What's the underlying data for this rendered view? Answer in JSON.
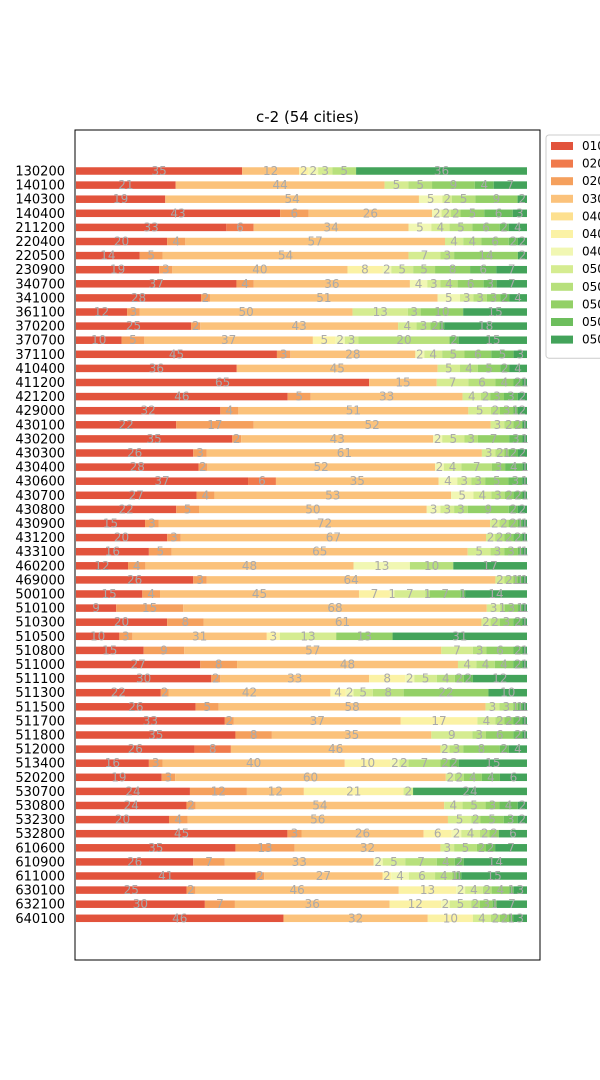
{
  "chart_data": {
    "type": "bar",
    "orientation": "horizontal",
    "stacked": true,
    "title": "c-2 (54 cities)",
    "xlabel": "",
    "ylabel": "",
    "legend_position": "right",
    "legend_labels": [
      "010",
      "020",
      "020",
      "030",
      "040",
      "040",
      "040",
      "050",
      "050",
      "050",
      "050",
      "050"
    ],
    "colors": [
      "#e2533c",
      "#f07a4c",
      "#f5a05d",
      "#fbc27b",
      "#fde08f",
      "#fbf2a5",
      "#f1f7b3",
      "#d5ec91",
      "#b7e07c",
      "#93d067",
      "#6dbe5d",
      "#43a35a"
    ],
    "categories": [
      "130200",
      "140100",
      "140300",
      "140400",
      "211200",
      "220400",
      "220500",
      "230900",
      "340700",
      "341000",
      "361100",
      "370200",
      "370700",
      "371100",
      "410400",
      "411200",
      "421200",
      "429000",
      "430100",
      "430200",
      "430300",
      "430400",
      "430600",
      "430700",
      "430800",
      "430900",
      "431200",
      "433100",
      "460200",
      "469000",
      "500100",
      "510100",
      "510300",
      "510500",
      "510800",
      "511000",
      "511100",
      "511300",
      "511500",
      "511700",
      "511800",
      "512000",
      "513400",
      "520200",
      "530700",
      "530800",
      "532300",
      "532800",
      "610600",
      "610900",
      "611000",
      "630100",
      "632100",
      "640100"
    ],
    "rows": [
      [
        35,
        0,
        0,
        12,
        0,
        2,
        2,
        3,
        5,
        0,
        0,
        36
      ],
      [
        21,
        0,
        0,
        44,
        0,
        0,
        0,
        5,
        5,
        9,
        4,
        7
      ],
      [
        19,
        0,
        0,
        54,
        0,
        0,
        5,
        2,
        5,
        9,
        0,
        2
      ],
      [
        43,
        0,
        6,
        26,
        0,
        0,
        2,
        2,
        2,
        5,
        6,
        3
      ],
      [
        33,
        6,
        0,
        34,
        0,
        0,
        5,
        4,
        5,
        6,
        2,
        4
      ],
      [
        20,
        0,
        4,
        57,
        0,
        0,
        0,
        4,
        4,
        6,
        2,
        2
      ],
      [
        14,
        0,
        5,
        54,
        0,
        0,
        0,
        7,
        3,
        14,
        0,
        2
      ],
      [
        19,
        0,
        3,
        40,
        0,
        8,
        2,
        5,
        5,
        8,
        6,
        7
      ],
      [
        37,
        0,
        4,
        36,
        0,
        0,
        4,
        3,
        4,
        6,
        3,
        7
      ],
      [
        28,
        0,
        2,
        51,
        0,
        0,
        5,
        3,
        3,
        3,
        2,
        4
      ],
      [
        12,
        0,
        3,
        50,
        0,
        0,
        0,
        13,
        3,
        10,
        0,
        15
      ],
      [
        25,
        0,
        2,
        43,
        0,
        0,
        0,
        4,
        3,
        2,
        1,
        18
      ],
      [
        10,
        0,
        5,
        37,
        0,
        5,
        2,
        3,
        20,
        0,
        2,
        15
      ],
      [
        45,
        0,
        3,
        28,
        0,
        0,
        2,
        4,
        5,
        6,
        5,
        3
      ],
      [
        36,
        0,
        0,
        45,
        0,
        0,
        0,
        5,
        4,
        5,
        2,
        4
      ],
      [
        65,
        0,
        0,
        15,
        0,
        0,
        0,
        7,
        6,
        4,
        2,
        1
      ],
      [
        46,
        0,
        5,
        33,
        0,
        0,
        0,
        4,
        2,
        3,
        3,
        2
      ],
      [
        32,
        0,
        4,
        51,
        0,
        0,
        0,
        5,
        2,
        3,
        1,
        2
      ],
      [
        22,
        0,
        17,
        52,
        0,
        0,
        0,
        3,
        2,
        2,
        0,
        1
      ],
      [
        35,
        0,
        2,
        43,
        0,
        0,
        2,
        5,
        3,
        7,
        3,
        1
      ],
      [
        26,
        0,
        3,
        61,
        0,
        0,
        0,
        3,
        2,
        1,
        2,
        2
      ],
      [
        28,
        0,
        2,
        52,
        0,
        0,
        2,
        4,
        7,
        3,
        4,
        1
      ],
      [
        37,
        6,
        0,
        35,
        0,
        0,
        4,
        3,
        3,
        5,
        3,
        1
      ],
      [
        27,
        0,
        4,
        53,
        0,
        0,
        5,
        4,
        3,
        2,
        2,
        1
      ],
      [
        22,
        0,
        5,
        50,
        0,
        0,
        3,
        3,
        3,
        9,
        2,
        2
      ],
      [
        15,
        0,
        3,
        72,
        0,
        0,
        0,
        2,
        2,
        2,
        1,
        1
      ],
      [
        20,
        0,
        3,
        67,
        0,
        0,
        0,
        2,
        2,
        2,
        2,
        1
      ],
      [
        16,
        0,
        5,
        65,
        0,
        0,
        0,
        5,
        3,
        3,
        1,
        1
      ],
      [
        12,
        0,
        4,
        48,
        0,
        0,
        13,
        0,
        10,
        0,
        0,
        17
      ],
      [
        26,
        0,
        3,
        64,
        0,
        0,
        0,
        2,
        2,
        1,
        1,
        1
      ],
      [
        15,
        0,
        4,
        45,
        0,
        7,
        1,
        7,
        1,
        7,
        1,
        14
      ],
      [
        9,
        0,
        15,
        68,
        0,
        0,
        0,
        3,
        1,
        3,
        1,
        1
      ],
      [
        20,
        0,
        8,
        61,
        0,
        0,
        0,
        2,
        2,
        3,
        2,
        1
      ],
      [
        10,
        0,
        3,
        31,
        0,
        3,
        0,
        13,
        0,
        13,
        0,
        31
      ],
      [
        15,
        0,
        9,
        57,
        0,
        0,
        0,
        7,
        3,
        6,
        2,
        1
      ],
      [
        27,
        0,
        8,
        48,
        0,
        0,
        0,
        4,
        4,
        4,
        2,
        1
      ],
      [
        30,
        0,
        2,
        33,
        0,
        8,
        2,
        5,
        4,
        2,
        2,
        12
      ],
      [
        22,
        0,
        2,
        42,
        0,
        4,
        2,
        5,
        8,
        22,
        0,
        10
      ],
      [
        26,
        0,
        5,
        58,
        0,
        0,
        0,
        3,
        3,
        1,
        1,
        1
      ],
      [
        33,
        0,
        2,
        37,
        0,
        17,
        0,
        4,
        2,
        2,
        2,
        1
      ],
      [
        35,
        0,
        8,
        35,
        0,
        0,
        0,
        9,
        3,
        6,
        2,
        1
      ],
      [
        26,
        8,
        0,
        46,
        0,
        0,
        0,
        2,
        3,
        8,
        2,
        4
      ],
      [
        16,
        0,
        3,
        40,
        0,
        10,
        2,
        2,
        7,
        2,
        2,
        15
      ],
      [
        19,
        0,
        3,
        60,
        0,
        0,
        0,
        2,
        2,
        4,
        4,
        6
      ],
      [
        24,
        0,
        12,
        12,
        0,
        21,
        0,
        2,
        0,
        0,
        0,
        24
      ],
      [
        24,
        0,
        2,
        54,
        0,
        0,
        0,
        4,
        5,
        3,
        4,
        2
      ],
      [
        20,
        0,
        4,
        56,
        0,
        0,
        0,
        5,
        2,
        5,
        3,
        2
      ],
      [
        45,
        0,
        3,
        26,
        0,
        6,
        2,
        4,
        2,
        2,
        0,
        6
      ],
      [
        35,
        0,
        13,
        32,
        0,
        0,
        0,
        3,
        5,
        2,
        2,
        7
      ],
      [
        26,
        0,
        7,
        33,
        0,
        0,
        2,
        5,
        7,
        4,
        2,
        14
      ],
      [
        41,
        0,
        2,
        27,
        0,
        2,
        4,
        6,
        4,
        1,
        1,
        15
      ],
      [
        25,
        0,
        2,
        46,
        0,
        13,
        2,
        4,
        2,
        4,
        1,
        3
      ],
      [
        30,
        0,
        7,
        36,
        0,
        12,
        2,
        5,
        2,
        3,
        1,
        7
      ],
      [
        46,
        0,
        0,
        32,
        0,
        10,
        0,
        4,
        2,
        2,
        1,
        3
      ]
    ]
  }
}
